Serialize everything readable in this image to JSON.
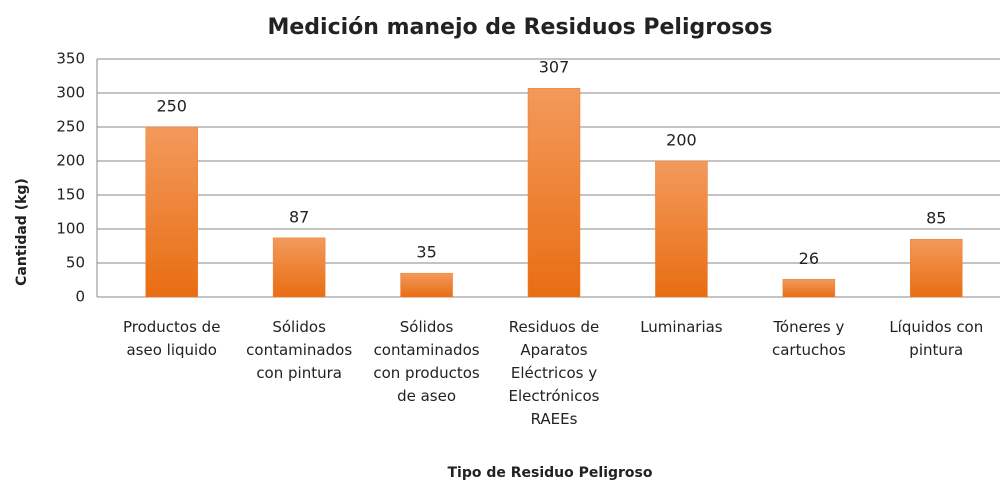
{
  "chart_data": {
    "type": "bar",
    "title": "Medición manejo de Residuos Peligrosos",
    "x_label": "Tipo de Residuo Peligroso",
    "y_label": "Cantidad (kg)",
    "categories": [
      "Productos de aseo liquido",
      "Sólidos contaminados con pintura",
      "Sólidos contaminados con productos de aseo",
      "Residuos de Aparatos Eléctricos y Electrónicos RAEEs",
      "Luminarias",
      "Tóneres y cartuchos",
      "Líquidos con pintura"
    ],
    "values": [
      250,
      87,
      35,
      307,
      200,
      26,
      85
    ],
    "color": "#ed7d31",
    "ylim": [
      0,
      350
    ],
    "yticks": [
      0,
      50,
      100,
      150,
      200,
      250,
      300,
      350
    ],
    "grid": true
  }
}
